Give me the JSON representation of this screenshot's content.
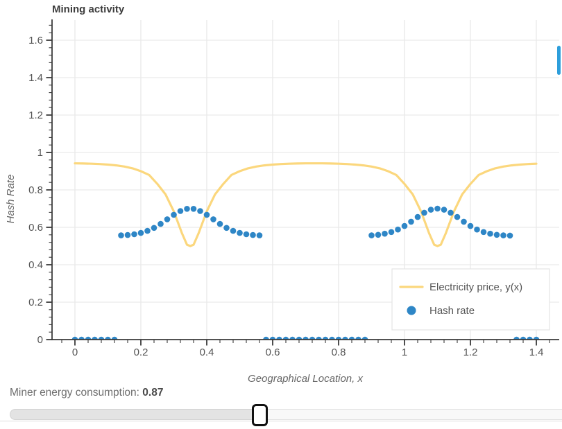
{
  "header": {
    "title": "Mining activity"
  },
  "chart_data": {
    "type": "line",
    "title": "Mining activity",
    "xlabel": "Geographical Location, x",
    "ylabel": "Hash Rate",
    "xlim": [
      -0.07,
      1.47
    ],
    "ylim": [
      0,
      1.7
    ],
    "grid": true,
    "legend_position": "bottom-right",
    "xtick_values": [
      0,
      0.2,
      0.4,
      0.6,
      0.8,
      1,
      1.2,
      1.4
    ],
    "xtick_labels": [
      "0",
      "0.2",
      "0.4",
      "0.6",
      "0.8",
      "1",
      "1.2",
      "1.4"
    ],
    "ytick_values": [
      0,
      0.2,
      0.4,
      0.6,
      0.8,
      1,
      1.2,
      1.4,
      1.6
    ],
    "ytick_labels": [
      "0",
      "0.2",
      "0.4",
      "0.6",
      "0.8",
      "1",
      "1.2",
      "1.4",
      "1.6"
    ],
    "minor_tick_step": 0.04,
    "series": [
      {
        "name": "Electricity price, y(x)",
        "kind": "line",
        "color": "#fbd77d",
        "x": [
          0,
          0.025,
          0.05,
          0.075,
          0.1,
          0.125,
          0.15,
          0.175,
          0.2,
          0.225,
          0.25,
          0.275,
          0.3,
          0.325,
          0.34,
          0.35,
          0.36,
          0.375,
          0.4,
          0.425,
          0.45,
          0.475,
          0.5,
          0.525,
          0.55,
          0.575,
          0.6,
          0.625,
          0.65,
          0.675,
          0.7,
          0.725,
          0.75,
          0.775,
          0.8,
          0.825,
          0.85,
          0.875,
          0.9,
          0.925,
          0.95,
          0.975,
          1,
          1.025,
          1.05,
          1.075,
          1.09,
          1.1,
          1.11,
          1.125,
          1.15,
          1.175,
          1.2,
          1.225,
          1.25,
          1.275,
          1.3,
          1.325,
          1.35,
          1.375,
          1.4
        ],
        "y": [
          0.942,
          0.941,
          0.94,
          0.938,
          0.935,
          0.931,
          0.925,
          0.915,
          0.9,
          0.88,
          0.832,
          0.776,
          0.685,
          0.567,
          0.507,
          0.5,
          0.507,
          0.567,
          0.685,
          0.776,
          0.832,
          0.88,
          0.9,
          0.915,
          0.925,
          0.931,
          0.935,
          0.938,
          0.94,
          0.941,
          0.942,
          0.942,
          0.942,
          0.941,
          0.94,
          0.938,
          0.935,
          0.931,
          0.925,
          0.915,
          0.9,
          0.88,
          0.832,
          0.776,
          0.685,
          0.567,
          0.507,
          0.5,
          0.507,
          0.567,
          0.685,
          0.776,
          0.832,
          0.88,
          0.9,
          0.915,
          0.925,
          0.931,
          0.935,
          0.938,
          0.94
        ]
      },
      {
        "name": "Hash rate",
        "kind": "scatter",
        "color": "#2e86c6",
        "x": [
          0,
          0.02,
          0.04,
          0.06,
          0.08,
          0.1,
          0.12,
          0.14,
          0.16,
          0.18,
          0.2,
          0.22,
          0.24,
          0.26,
          0.28,
          0.3,
          0.32,
          0.34,
          0.36,
          0.38,
          0.4,
          0.42,
          0.44,
          0.46,
          0.48,
          0.5,
          0.52,
          0.54,
          0.56,
          0.58,
          0.6,
          0.62,
          0.64,
          0.66,
          0.68,
          0.7,
          0.72,
          0.74,
          0.76,
          0.78,
          0.8,
          0.82,
          0.84,
          0.86,
          0.88,
          0.9,
          0.92,
          0.94,
          0.96,
          0.98,
          1,
          1.02,
          1.04,
          1.06,
          1.08,
          1.1,
          1.12,
          1.14,
          1.16,
          1.18,
          1.2,
          1.22,
          1.24,
          1.26,
          1.28,
          1.3,
          1.32,
          1.34,
          1.36,
          1.38,
          1.4
        ],
        "y": [
          0,
          0,
          0,
          0,
          0,
          0,
          0,
          0.557,
          0.559,
          0.563,
          0.57,
          0.581,
          0.597,
          0.618,
          0.643,
          0.667,
          0.687,
          0.699,
          0.699,
          0.687,
          0.667,
          0.643,
          0.618,
          0.597,
          0.581,
          0.57,
          0.563,
          0.559,
          0.557,
          0,
          0,
          0,
          0,
          0,
          0,
          0,
          0,
          0,
          0,
          0,
          0,
          0,
          0,
          0,
          0,
          0.557,
          0.56,
          0.566,
          0.575,
          0.588,
          0.607,
          0.63,
          0.655,
          0.678,
          0.694,
          0.7,
          0.694,
          0.678,
          0.655,
          0.63,
          0.607,
          0.588,
          0.575,
          0.566,
          0.56,
          0.557,
          0.556,
          0,
          0,
          0,
          0
        ]
      }
    ]
  },
  "slider": {
    "label": "Miner energy consumption:",
    "value": "0.87"
  },
  "ui_colors": {
    "accent_scrollbar": "#2d9edb",
    "axis": "#3a3a3a",
    "grid": "#e9e9e9",
    "tick_label": "#545454",
    "axis_title": "#666666",
    "legend_text": "#555555"
  }
}
